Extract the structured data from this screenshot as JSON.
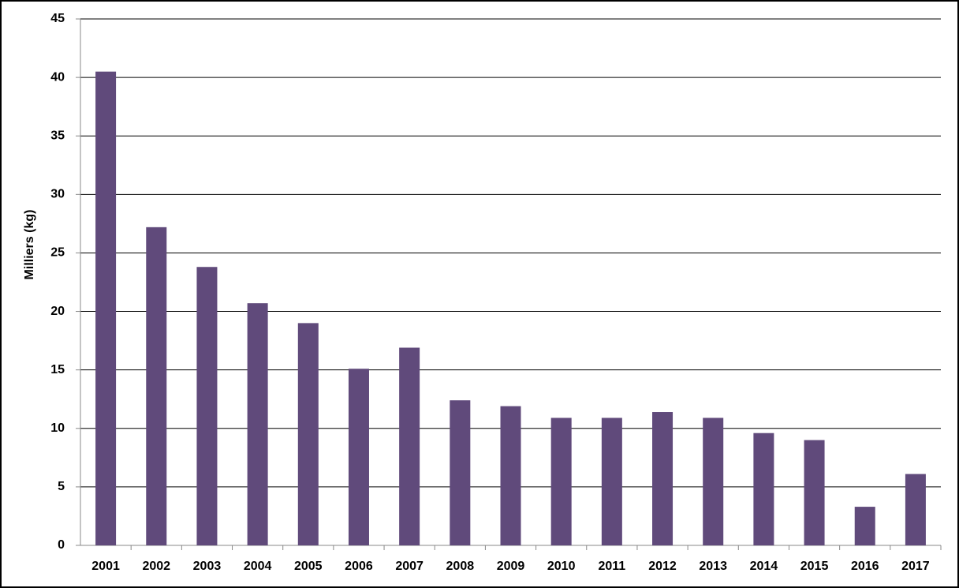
{
  "chart_data": {
    "type": "bar",
    "y_label": "Milliers (kg)",
    "categories": [
      "2001",
      "2002",
      "2003",
      "2004",
      "2005",
      "2006",
      "2007",
      "2008",
      "2009",
      "2010",
      "2011",
      "2012",
      "2013",
      "2014",
      "2015",
      "2016",
      "2017"
    ],
    "values": [
      40.5,
      27.2,
      23.8,
      20.7,
      19.0,
      15.1,
      16.9,
      12.4,
      11.9,
      10.9,
      10.9,
      11.4,
      10.9,
      9.6,
      9.0,
      3.3,
      6.1
    ],
    "color": "#604a7b",
    "ylim": [
      0,
      45
    ],
    "yticks": [
      0,
      5,
      10,
      15,
      20,
      25,
      30,
      35,
      40,
      45
    ],
    "grid": true
  }
}
